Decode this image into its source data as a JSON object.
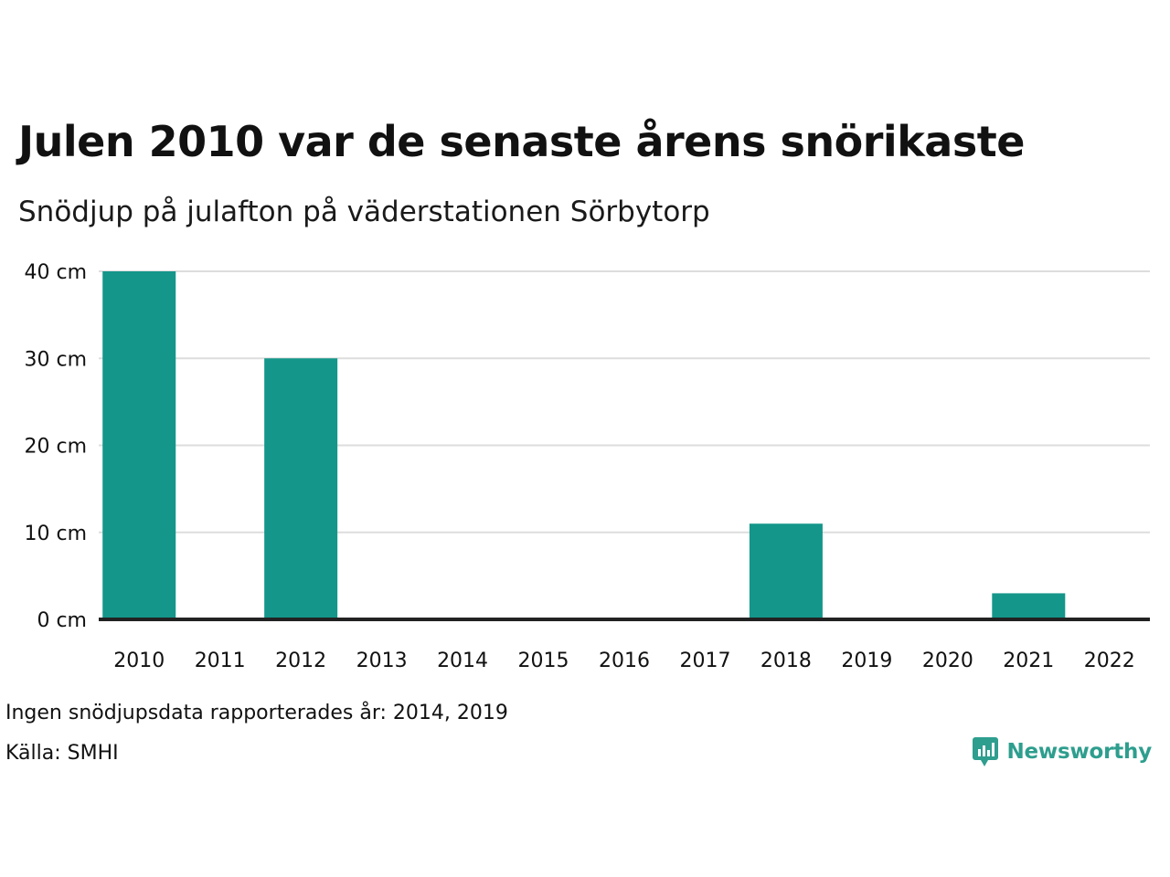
{
  "header": {
    "title": "Julen 2010 var de senaste årens snörikaste",
    "subtitle": "Snödjup på julafton på väderstationen Sörbytorp"
  },
  "footer": {
    "note": "Ingen snödjupsdata rapporterades år: 2014, 2019",
    "source": "Källa: SMHI",
    "brand": "Newsworthy"
  },
  "colors": {
    "bar": "#14968a",
    "grid": "#dddddd",
    "axis": "#222222",
    "brand": "#2e9e8e"
  },
  "icons": {
    "brand": "chart-bubble-icon"
  },
  "chart_data": {
    "type": "bar",
    "title": "Julen 2010 var de senaste årens snörikaste",
    "subtitle": "Snödjup på julafton på väderstationen Sörbytorp",
    "categories": [
      "2010",
      "2011",
      "2012",
      "2013",
      "2014",
      "2015",
      "2016",
      "2017",
      "2018",
      "2019",
      "2020",
      "2021",
      "2022"
    ],
    "values": [
      40,
      0,
      30,
      0,
      null,
      0,
      0,
      0,
      11,
      null,
      0,
      3,
      0
    ],
    "ylim": [
      0,
      40
    ],
    "yticks": [
      0,
      10,
      20,
      30,
      40
    ],
    "ytick_labels": [
      "0 cm",
      "10 cm",
      "20 cm",
      "30 cm",
      "40 cm"
    ],
    "grid": true,
    "legend": "none"
  }
}
